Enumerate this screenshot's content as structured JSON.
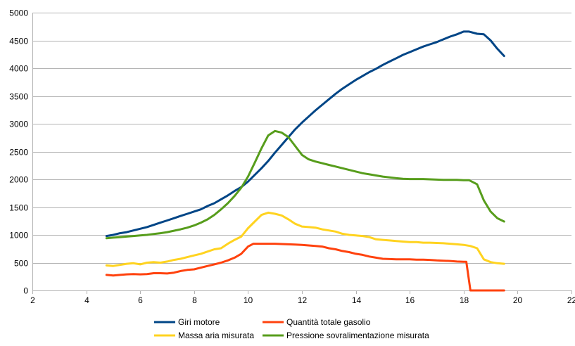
{
  "chart_data": {
    "type": "line",
    "title": "",
    "xlabel": "",
    "ylabel": "",
    "xlim": [
      2,
      22
    ],
    "ylim": [
      0,
      5000
    ],
    "x_ticks": [
      2,
      4,
      6,
      8,
      10,
      12,
      14,
      16,
      18,
      20,
      22
    ],
    "y_ticks": [
      0,
      500,
      1000,
      1500,
      2000,
      2500,
      3000,
      3500,
      4000,
      4500,
      5000
    ],
    "grid": "horizontal",
    "legend": "bottom",
    "series": [
      {
        "name": "Giri motore",
        "color": "#004586",
        "x": [
          4.75,
          5.0,
          5.25,
          5.5,
          5.75,
          6.0,
          6.25,
          6.5,
          6.75,
          7.0,
          7.25,
          7.5,
          7.75,
          8.0,
          8.25,
          8.5,
          8.75,
          9.0,
          9.25,
          9.5,
          9.75,
          10.0,
          10.25,
          10.5,
          10.75,
          11.0,
          11.25,
          11.5,
          11.75,
          12.0,
          12.25,
          12.5,
          12.75,
          13.0,
          13.25,
          13.5,
          13.75,
          14.0,
          14.25,
          14.5,
          14.75,
          15.0,
          15.25,
          15.5,
          15.75,
          16.0,
          16.25,
          16.5,
          16.75,
          17.0,
          17.25,
          17.5,
          17.75,
          18.0,
          18.2,
          18.5,
          18.75,
          19.0,
          19.25,
          19.5
        ],
        "values": [
          980,
          1000,
          1030,
          1050,
          1080,
          1110,
          1140,
          1180,
          1220,
          1260,
          1300,
          1340,
          1380,
          1420,
          1460,
          1520,
          1570,
          1640,
          1710,
          1790,
          1860,
          1960,
          2080,
          2200,
          2330,
          2480,
          2620,
          2760,
          2900,
          3020,
          3130,
          3240,
          3340,
          3440,
          3540,
          3630,
          3710,
          3790,
          3860,
          3930,
          3990,
          4060,
          4120,
          4180,
          4240,
          4290,
          4340,
          4390,
          4430,
          4470,
          4520,
          4570,
          4610,
          4660,
          4660,
          4620,
          4610,
          4500,
          4350,
          4220
        ]
      },
      {
        "name": "Quantità totale gasolio",
        "color": "#ff420e",
        "x": [
          4.75,
          5.0,
          5.25,
          5.5,
          5.75,
          6.0,
          6.25,
          6.5,
          6.75,
          7.0,
          7.25,
          7.5,
          7.75,
          8.0,
          8.25,
          8.5,
          8.75,
          9.0,
          9.25,
          9.5,
          9.75,
          10.0,
          10.2,
          10.5,
          10.75,
          11.0,
          11.25,
          11.5,
          11.75,
          12.0,
          12.25,
          12.5,
          12.75,
          13.0,
          13.25,
          13.5,
          13.75,
          14.0,
          14.25,
          14.5,
          14.75,
          15.0,
          15.25,
          15.5,
          15.75,
          16.0,
          16.25,
          16.5,
          16.75,
          17.0,
          17.25,
          17.5,
          17.75,
          18.0,
          18.1,
          18.25,
          18.5,
          19.0,
          19.5
        ],
        "values": [
          280,
          270,
          280,
          290,
          295,
          290,
          295,
          310,
          310,
          305,
          320,
          350,
          370,
          380,
          410,
          440,
          470,
          500,
          540,
          590,
          660,
          790,
          840,
          840,
          840,
          840,
          835,
          830,
          825,
          820,
          810,
          800,
          790,
          760,
          740,
          710,
          690,
          660,
          640,
          610,
          590,
          570,
          565,
          560,
          560,
          560,
          555,
          555,
          550,
          540,
          535,
          530,
          520,
          515,
          515,
          0,
          0,
          0,
          0
        ]
      },
      {
        "name": "Massa aria misurata",
        "color": "#ffd320",
        "x": [
          4.75,
          5.0,
          5.25,
          5.5,
          5.75,
          6.0,
          6.25,
          6.5,
          6.75,
          7.0,
          7.25,
          7.5,
          7.75,
          8.0,
          8.25,
          8.5,
          8.75,
          9.0,
          9.25,
          9.5,
          9.75,
          10.0,
          10.25,
          10.5,
          10.75,
          11.0,
          11.25,
          11.5,
          11.75,
          12.0,
          12.25,
          12.5,
          12.75,
          13.0,
          13.25,
          13.5,
          13.75,
          14.0,
          14.25,
          14.5,
          14.75,
          15.0,
          15.25,
          15.5,
          15.75,
          16.0,
          16.25,
          16.5,
          16.75,
          17.0,
          17.25,
          17.5,
          17.75,
          18.0,
          18.25,
          18.5,
          18.75,
          19.0,
          19.25,
          19.5
        ],
        "values": [
          450,
          440,
          460,
          480,
          490,
          470,
          500,
          510,
          500,
          520,
          550,
          570,
          600,
          630,
          660,
          700,
          740,
          760,
          840,
          910,
          970,
          1120,
          1240,
          1360,
          1400,
          1380,
          1350,
          1280,
          1200,
          1150,
          1140,
          1130,
          1100,
          1080,
          1060,
          1020,
          1000,
          990,
          980,
          960,
          920,
          910,
          900,
          890,
          880,
          870,
          870,
          860,
          860,
          855,
          850,
          840,
          830,
          820,
          800,
          760,
          560,
          510,
          490,
          480
        ]
      },
      {
        "name": "Pressione sovralimentazione misurata",
        "color": "#579d1c",
        "x": [
          4.75,
          5.0,
          5.25,
          5.5,
          5.75,
          6.0,
          6.25,
          6.5,
          6.75,
          7.0,
          7.25,
          7.5,
          7.75,
          8.0,
          8.25,
          8.5,
          8.75,
          9.0,
          9.25,
          9.5,
          9.75,
          10.0,
          10.25,
          10.5,
          10.75,
          11.0,
          11.25,
          11.5,
          11.75,
          12.0,
          12.25,
          12.5,
          12.75,
          13.0,
          13.25,
          13.5,
          13.75,
          14.0,
          14.25,
          14.5,
          14.75,
          15.0,
          15.25,
          15.5,
          15.75,
          16.0,
          16.25,
          16.5,
          16.75,
          17.0,
          17.25,
          17.5,
          17.75,
          18.0,
          18.2,
          18.5,
          18.75,
          19.0,
          19.25,
          19.5
        ],
        "values": [
          940,
          950,
          960,
          970,
          980,
          990,
          1000,
          1015,
          1030,
          1050,
          1075,
          1100,
          1130,
          1170,
          1220,
          1280,
          1360,
          1460,
          1570,
          1700,
          1850,
          2050,
          2300,
          2560,
          2790,
          2870,
          2840,
          2760,
          2600,
          2440,
          2360,
          2320,
          2290,
          2260,
          2230,
          2200,
          2170,
          2140,
          2110,
          2090,
          2070,
          2050,
          2035,
          2020,
          2010,
          2005,
          2005,
          2005,
          2000,
          1995,
          1990,
          1990,
          1990,
          1985,
          1985,
          1910,
          1620,
          1420,
          1300,
          1240
        ]
      }
    ]
  }
}
